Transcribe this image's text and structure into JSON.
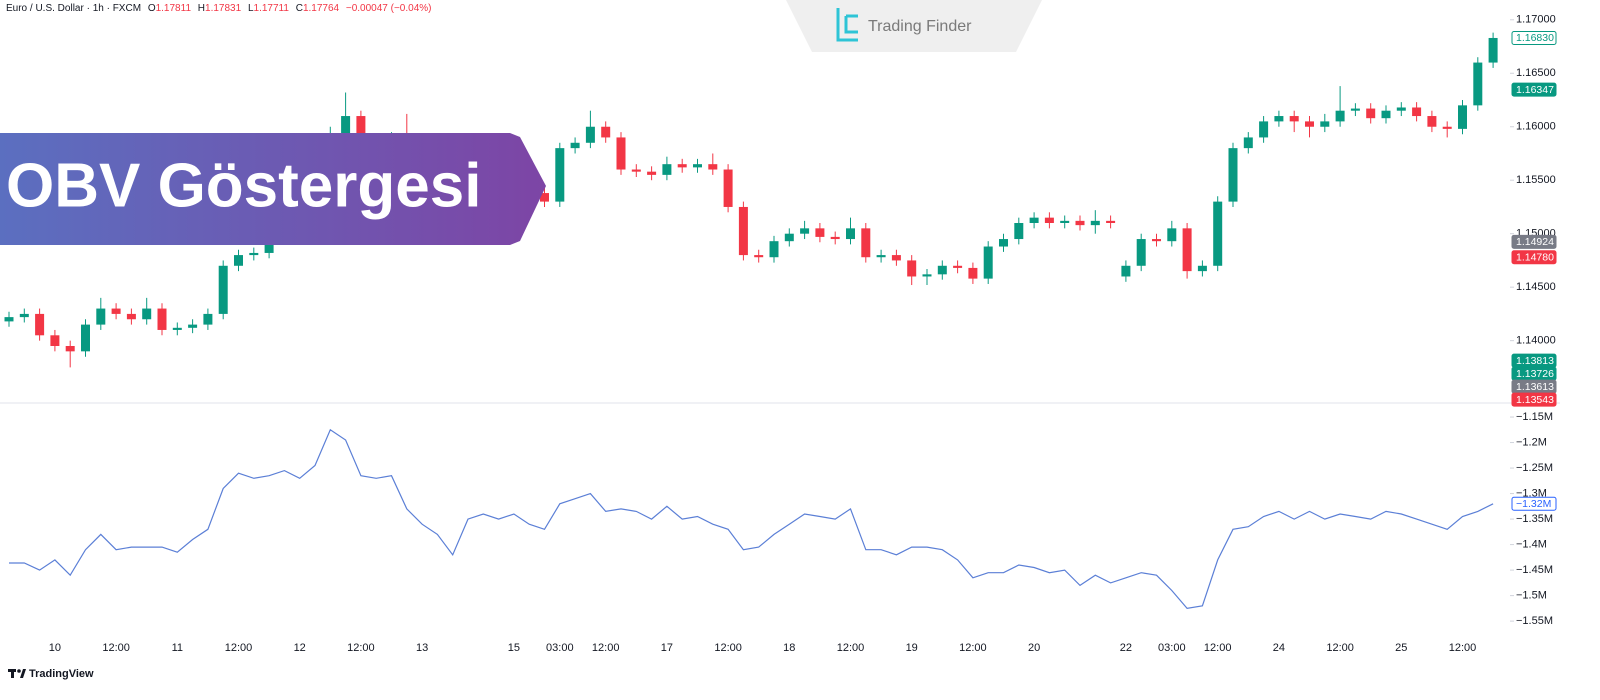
{
  "header": {
    "symbol": "Euro / U.S. Dollar · 1h · FXCM",
    "legend": [
      {
        "key": "O",
        "value": 1.17811
      },
      {
        "key": "H",
        "value": 1.17831
      },
      {
        "key": "L",
        "value": 1.17711
      },
      {
        "key": "C",
        "value": 1.17764
      }
    ],
    "change": "−0.00047 (−0.04%)"
  },
  "overlay": {
    "banner": "OBV Göstergesi",
    "brand": "Trading Finder",
    "footer": "TradingView"
  },
  "chart_data": {
    "type": "candlestick",
    "up_color": "#089981",
    "down_color": "#f23645",
    "categories": [
      null,
      null,
      null,
      "10",
      null,
      null,
      null,
      "12:00",
      null,
      null,
      null,
      "11",
      null,
      null,
      null,
      "12:00",
      null,
      null,
      null,
      "12",
      null,
      null,
      null,
      "12:00",
      null,
      null,
      null,
      "13",
      null,
      null,
      null,
      null,
      null,
      "15",
      null,
      null,
      "03:00",
      null,
      null,
      "12:00",
      null,
      null,
      null,
      "17",
      null,
      null,
      null,
      "12:00",
      null,
      null,
      null,
      "18",
      null,
      null,
      null,
      "12:00",
      null,
      null,
      null,
      "19",
      null,
      null,
      null,
      "12:00",
      null,
      null,
      null,
      "20",
      null,
      null,
      null,
      null,
      null,
      "22",
      null,
      null,
      "03:00",
      null,
      null,
      "12:00",
      null,
      null,
      null,
      "24",
      null,
      null,
      null,
      "12:00",
      null,
      null,
      null,
      "25",
      null,
      null,
      null,
      "12:00",
      null,
      null
    ],
    "ohlc": [
      [
        1.1418,
        1.1427,
        1.1413,
        1.1422
      ],
      [
        1.1422,
        1.143,
        1.1417,
        1.1425
      ],
      [
        1.1425,
        1.143,
        1.14,
        1.1405
      ],
      [
        1.1405,
        1.141,
        1.139,
        1.1395
      ],
      [
        1.1395,
        1.14,
        1.1375,
        1.139
      ],
      [
        1.139,
        1.142,
        1.1385,
        1.1415
      ],
      [
        1.1415,
        1.144,
        1.141,
        1.143
      ],
      [
        1.143,
        1.1435,
        1.142,
        1.1425
      ],
      [
        1.1425,
        1.143,
        1.1415,
        1.142
      ],
      [
        1.142,
        1.144,
        1.1415,
        1.143
      ],
      [
        1.143,
        1.1435,
        1.1405,
        1.141
      ],
      [
        1.141,
        1.1417,
        1.1405,
        1.1412
      ],
      [
        1.1412,
        1.142,
        1.1407,
        1.1415
      ],
      [
        1.1415,
        1.143,
        1.141,
        1.1425
      ],
      [
        1.1425,
        1.1475,
        1.142,
        1.147
      ],
      [
        1.147,
        1.1485,
        1.1465,
        1.148
      ],
      [
        1.148,
        1.1487,
        1.1475,
        1.1482
      ],
      [
        1.1482,
        1.15,
        1.1477,
        1.1495
      ],
      [
        1.1495,
        1.1515,
        1.149,
        1.151
      ],
      [
        1.151,
        1.1525,
        1.1505,
        1.152
      ],
      [
        1.152,
        1.154,
        1.1515,
        1.1535
      ],
      [
        1.1535,
        1.16,
        1.153,
        1.159
      ],
      [
        1.159,
        1.1632,
        1.1585,
        1.161
      ],
      [
        1.161,
        1.1615,
        1.158,
        1.1585
      ],
      [
        1.1585,
        1.159,
        1.1575,
        1.158
      ],
      [
        1.158,
        1.1595,
        1.1575,
        1.159
      ],
      [
        1.159,
        1.1612,
        1.1545,
        1.155
      ],
      [
        1.155,
        1.1555,
        1.1535,
        1.154
      ],
      [
        1.154,
        1.1545,
        1.1525,
        1.153
      ],
      [
        1.153,
        1.1535,
        1.1492,
        1.151
      ],
      [
        1.151,
        1.1535,
        1.1505,
        1.153
      ],
      [
        1.153,
        1.155,
        1.1525,
        1.1545
      ],
      [
        1.1545,
        1.155,
        1.1535,
        1.154
      ],
      [
        1.154,
        1.1545,
        1.153,
        1.1535
      ],
      [
        1.1535,
        1.1543,
        1.153,
        1.1538
      ],
      [
        1.1538,
        1.1543,
        1.1525,
        1.153
      ],
      [
        1.153,
        1.1585,
        1.1525,
        1.158
      ],
      [
        1.158,
        1.159,
        1.1575,
        1.1585
      ],
      [
        1.1585,
        1.1615,
        1.158,
        1.16
      ],
      [
        1.16,
        1.1605,
        1.1585,
        1.159
      ],
      [
        1.159,
        1.1595,
        1.1555,
        1.156
      ],
      [
        1.156,
        1.1565,
        1.1553,
        1.1558
      ],
      [
        1.1558,
        1.1563,
        1.155,
        1.1555
      ],
      [
        1.1555,
        1.1572,
        1.155,
        1.1565
      ],
      [
        1.1565,
        1.157,
        1.1557,
        1.1562
      ],
      [
        1.1562,
        1.157,
        1.1557,
        1.1565
      ],
      [
        1.1565,
        1.1575,
        1.1555,
        1.156
      ],
      [
        1.156,
        1.1565,
        1.152,
        1.1525
      ],
      [
        1.1525,
        1.153,
        1.1475,
        1.148
      ],
      [
        1.148,
        1.1485,
        1.1473,
        1.1478
      ],
      [
        1.1478,
        1.1498,
        1.1473,
        1.1493
      ],
      [
        1.1493,
        1.1505,
        1.1488,
        1.15
      ],
      [
        1.15,
        1.1512,
        1.1495,
        1.1505
      ],
      [
        1.1505,
        1.151,
        1.1492,
        1.1497
      ],
      [
        1.1497,
        1.1502,
        1.149,
        1.1495
      ],
      [
        1.1495,
        1.1515,
        1.149,
        1.1505
      ],
      [
        1.1505,
        1.151,
        1.1473,
        1.1478
      ],
      [
        1.1478,
        1.1485,
        1.1473,
        1.148
      ],
      [
        1.148,
        1.1485,
        1.147,
        1.1475
      ],
      [
        1.1475,
        1.148,
        1.1452,
        1.146
      ],
      [
        1.146,
        1.1467,
        1.1452,
        1.1462
      ],
      [
        1.1462,
        1.1475,
        1.1457,
        1.147
      ],
      [
        1.147,
        1.1475,
        1.1463,
        1.1468
      ],
      [
        1.1468,
        1.1473,
        1.1453,
        1.1458
      ],
      [
        1.1458,
        1.1493,
        1.1453,
        1.1488
      ],
      [
        1.1488,
        1.15,
        1.1483,
        1.1495
      ],
      [
        1.1495,
        1.1515,
        1.149,
        1.151
      ],
      [
        1.151,
        1.152,
        1.1505,
        1.1515
      ],
      [
        1.1515,
        1.152,
        1.1505,
        1.151
      ],
      [
        1.151,
        1.1517,
        1.1505,
        1.1512
      ],
      [
        1.1512,
        1.1517,
        1.1503,
        1.1508
      ],
      [
        1.1508,
        1.1522,
        1.15,
        1.1512
      ],
      [
        1.1512,
        1.1517,
        1.1505,
        1.151
      ],
      [
        1.146,
        1.1475,
        1.1455,
        1.147
      ],
      [
        1.147,
        1.15,
        1.1465,
        1.1495
      ],
      [
        1.1495,
        1.15,
        1.1488,
        1.1493
      ],
      [
        1.1493,
        1.1512,
        1.1488,
        1.1505
      ],
      [
        1.1505,
        1.151,
        1.1458,
        1.1465
      ],
      [
        1.1465,
        1.1475,
        1.146,
        1.147
      ],
      [
        1.147,
        1.1535,
        1.1465,
        1.153
      ],
      [
        1.153,
        1.1585,
        1.1525,
        1.158
      ],
      [
        1.158,
        1.1595,
        1.1575,
        1.159
      ],
      [
        1.159,
        1.161,
        1.1585,
        1.1605
      ],
      [
        1.1605,
        1.1615,
        1.16,
        1.161
      ],
      [
        1.161,
        1.1615,
        1.1595,
        1.1605
      ],
      [
        1.1605,
        1.161,
        1.159,
        1.16
      ],
      [
        1.16,
        1.1612,
        1.1595,
        1.1605
      ],
      [
        1.1605,
        1.1638,
        1.16,
        1.1615
      ],
      [
        1.1615,
        1.1622,
        1.161,
        1.1617
      ],
      [
        1.1617,
        1.1622,
        1.1603,
        1.1608
      ],
      [
        1.1608,
        1.162,
        1.1603,
        1.1615
      ],
      [
        1.1615,
        1.1623,
        1.161,
        1.1618
      ],
      [
        1.1618,
        1.1623,
        1.1605,
        1.161
      ],
      [
        1.161,
        1.1615,
        1.1595,
        1.16
      ],
      [
        1.16,
        1.1605,
        1.159,
        1.1598
      ],
      [
        1.1598,
        1.1625,
        1.1593,
        1.162
      ],
      [
        1.162,
        1.1665,
        1.1615,
        1.166
      ],
      [
        1.166,
        1.1688,
        1.1655,
        1.1683
      ]
    ],
    "ylim": [
      1.13417,
      1.17185
    ],
    "yticks": [
      {
        "value": 1.17,
        "label": "1.17000"
      },
      {
        "value": 1.165,
        "label": "1.16500"
      },
      {
        "value": 1.16,
        "label": "1.16000"
      },
      {
        "value": 1.155,
        "label": "1.15500"
      },
      {
        "value": 1.15,
        "label": "1.15000"
      },
      {
        "value": 1.145,
        "label": "1.14500"
      },
      {
        "value": 1.14,
        "label": "1.14000"
      }
    ],
    "price_badges": [
      {
        "value": 1.1683,
        "label": "1.16830",
        "color": "#ffffff",
        "text_color": "#089981"
      },
      {
        "value": 1.16347,
        "label": "1.16347",
        "color": "#089981",
        "text_color": "#ffffff"
      },
      {
        "value": 1.14924,
        "label": "1.14924",
        "color": "#787b86",
        "text_color": "#ffffff"
      },
      {
        "value": 1.1478,
        "label": "1.14780",
        "color": "#f23645",
        "text_color": "#ffffff"
      },
      {
        "value": 1.13813,
        "label": "1.13813",
        "color": "#089981",
        "text_color": "#ffffff"
      },
      {
        "value": 1.13726,
        "label": "1.13726",
        "color": "#089981",
        "text_color": "#ffffff"
      },
      {
        "value": 1.13613,
        "label": "1.13613",
        "color": "#787b86",
        "text_color": "#ffffff"
      },
      {
        "value": 1.13543,
        "label": "1.13543",
        "color": "#f23645",
        "text_color": "#ffffff"
      }
    ],
    "indicator": {
      "type": "line",
      "color": "#5b7fd6",
      "values": [
        -1436000,
        -1436000,
        -1450000,
        -1430000,
        -1460000,
        -1410000,
        -1380000,
        -1410000,
        -1405000,
        -1405000,
        -1405000,
        -1415000,
        -1390000,
        -1370000,
        -1290000,
        -1260000,
        -1270000,
        -1265000,
        -1255000,
        -1270000,
        -1245000,
        -1175000,
        -1195000,
        -1265000,
        -1270000,
        -1265000,
        -1330000,
        -1360000,
        -1380000,
        -1420000,
        -1350000,
        -1340000,
        -1350000,
        -1340000,
        -1360000,
        -1370000,
        -1320000,
        -1310000,
        -1300000,
        -1335000,
        -1330000,
        -1335000,
        -1350000,
        -1325000,
        -1350000,
        -1345000,
        -1360000,
        -1370000,
        -1410000,
        -1405000,
        -1380000,
        -1360000,
        -1340000,
        -1345000,
        -1350000,
        -1330000,
        -1410000,
        -1410000,
        -1420000,
        -1405000,
        -1405000,
        -1410000,
        -1430000,
        -1465000,
        -1455000,
        -1455000,
        -1440000,
        -1445000,
        -1455000,
        -1450000,
        -1480000,
        -1460000,
        -1475000,
        -1465000,
        -1455000,
        -1460000,
        -1490000,
        -1525000,
        -1520000,
        -1430000,
        -1370000,
        -1365000,
        -1345000,
        -1335000,
        -1350000,
        -1335000,
        -1350000,
        -1340000,
        -1345000,
        -1350000,
        -1335000,
        -1340000,
        -1350000,
        -1360000,
        -1370000,
        -1345000,
        -1335000,
        -1320000
      ],
      "ylim": [
        -1587000,
        -1122500
      ],
      "yticks": [
        {
          "value": -1150000,
          "label": "−1.15M"
        },
        {
          "value": -1200000,
          "label": "−1.2M"
        },
        {
          "value": -1250000,
          "label": "−1.25M"
        },
        {
          "value": -1300000,
          "label": "−1.3M"
        },
        {
          "value": -1350000,
          "label": "−1.35M"
        },
        {
          "value": -1400000,
          "label": "−1.4M"
        },
        {
          "value": -1450000,
          "label": "−1.45M"
        },
        {
          "value": -1500000,
          "label": "−1.5M"
        },
        {
          "value": -1550000,
          "label": "−1.55M"
        }
      ],
      "badge": {
        "value": -1320000,
        "label": "−1.32M",
        "color": "#ffffff",
        "text_color": "#2962ff"
      }
    }
  }
}
